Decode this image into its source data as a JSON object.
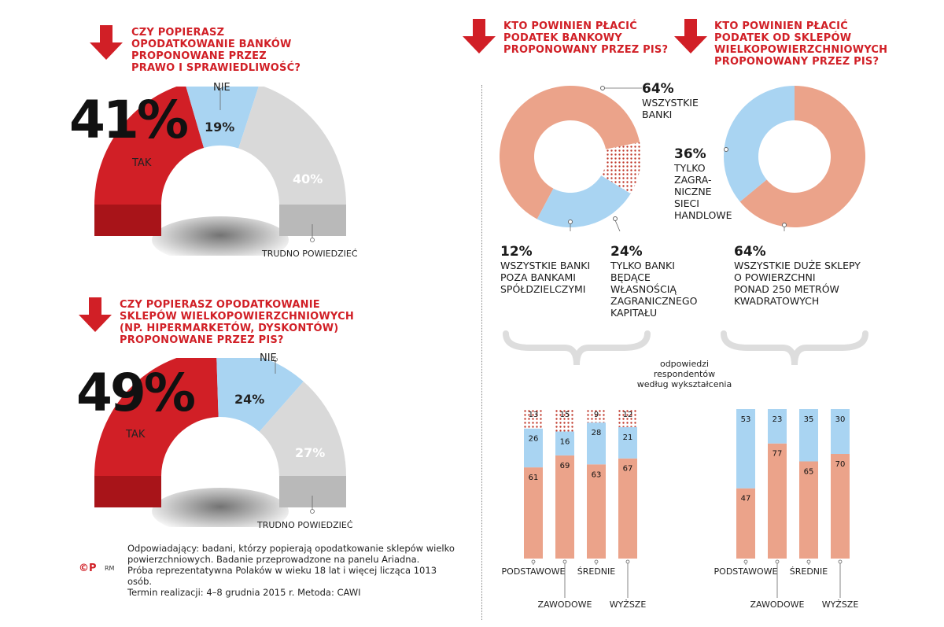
{
  "q1": {
    "title": [
      "CZY POPIERASZ",
      "OPODATKOWANIE BANKÓW",
      "PROPONOWANE PRZEZ",
      "PRAWO I SPRAWIEDLIWOŚĆ?"
    ],
    "big": "41%",
    "tak": "TAK",
    "nie": "NIE",
    "nie_pct": "19%",
    "trudno_pct": "40%",
    "trudno": "TRUDNO POWIEDZIEĆ"
  },
  "q2": {
    "title": [
      "CZY POPIERASZ OPODATKOWANIE",
      "SKLEPÓW WIELKOPOWIERZCHNIOWYCH",
      "(NP. HIPERMARKETÓW, DYSKONTÓW)",
      "PROPONOWANE PRZEZ PIS?"
    ],
    "big": "49%",
    "tak": "TAK",
    "nie": "NIE",
    "nie_pct": "24%",
    "trudno_pct": "27%",
    "trudno": "TRUDNO POWIEDZIEĆ"
  },
  "q3": {
    "title": [
      "KTO POWINIEN PŁACIĆ",
      "PODATEK BANKOWY",
      "PROPONOWANY PRZEZ PIS?"
    ],
    "a1": {
      "pct": "64%",
      "lines": [
        "WSZYSTKIE",
        "BANKI"
      ]
    },
    "a2": {
      "pct": "12%",
      "lines": [
        "WSZYSTKIE BANKI",
        "POZA BANKAMI",
        "SPÓŁDZIELCZYMI"
      ]
    },
    "a3": {
      "pct": "24%",
      "lines": [
        "TYLKO BANKI",
        "BĘDĄCE",
        "WŁASNOŚCIĄ",
        "ZAGRANICZNEGO",
        "KAPITAŁU"
      ]
    }
  },
  "q4": {
    "title": [
      "KTO POWINIEN PŁACIĆ",
      "PODATEK OD SKLEPÓW",
      "WIELKOPOWIERZCHNIOWYCH",
      "PROPONOWANY PRZEZ PIS?"
    ],
    "a1": {
      "pct": "36%",
      "lines": [
        "TYLKO",
        "ZAGRA-",
        "NICZNE",
        "SIECI",
        "HANDLOWE"
      ]
    },
    "a2": {
      "pct": "64%",
      "lines": [
        "WSZYSTKIE DUŻE SKLEPY",
        "O POWIERZCHNI",
        "PONAD 250 METRÓW",
        "KWADRATOWYCH"
      ]
    }
  },
  "edu_caption": [
    "odpowiedzi",
    "respondentów",
    "według wykształcenia"
  ],
  "note": [
    "Odpowiadający: badani, którzy popierają opodatkowanie sklepów wielko",
    "powierzchniowych. Badanie przeprowadzone na panelu Ariadna.",
    "Próba reprezentatywna Polaków w wieku 18 lat i więcej licząca 1013 osób.",
    "Termin realizacji: 4–8 grudnia 2015 r. Metoda: CAWI"
  ],
  "logo": "©P",
  "author": "RM",
  "colors": {
    "red": "#d11f26",
    "blue": "#a9d4f2",
    "salmon": "#eba38a",
    "grey": "#d9d9d9",
    "dot": "#c0392b"
  },
  "chart_data": [
    {
      "type": "pie",
      "title": "CZY POPIERASZ OPODATKOWANIE BANKÓW PROPONOWANE PRZEZ PRAWO I SPRAWIEDLIWOŚĆ?",
      "categories": [
        "TAK",
        "NIE",
        "TRUDNO POWIEDZIEĆ"
      ],
      "values": [
        41,
        19,
        40
      ]
    },
    {
      "type": "pie",
      "title": "CZY POPIERASZ OPODATKOWANIE SKLEPÓW WIELKOPOWIERZCHNIOWYCH (NP. HIPERMARKETÓW, DYSKONTÓW) PROPONOWANE PRZEZ PIS?",
      "categories": [
        "TAK",
        "NIE",
        "TRUDNO POWIEDZIEĆ"
      ],
      "values": [
        49,
        24,
        27
      ]
    },
    {
      "type": "pie",
      "title": "KTO POWINIEN PŁACIĆ PODATEK BANKOWY PROPONOWANY PRZEZ PIS?",
      "categories": [
        "WSZYSTKIE BANKI",
        "WSZYSTKIE BANKI POZA BANKAMI SPÓŁDZIELCZYMI",
        "TYLKO BANKI BĘDĄCE WŁASNOŚCIĄ ZAGRANICZNEGO KAPITAŁU"
      ],
      "values": [
        64,
        12,
        24
      ]
    },
    {
      "type": "pie",
      "title": "KTO POWINIEN PŁACIĆ PODATEK OD SKLEPÓW WIELKOPOWIERZCHNIOWYCH PROPONOWANY PRZEZ PIS?",
      "categories": [
        "WSZYSTKIE DUŻE SKLEPY O POWIERZCHNI PONAD 250 METRÓW KWADRATOWYCH",
        "TYLKO ZAGRANICZNE SIECI HANDLOWE"
      ],
      "values": [
        64,
        36
      ]
    },
    {
      "type": "bar",
      "stacked": true,
      "categories": [
        "PODSTAWOWE",
        "ZAWODOWE",
        "ŚREDNIE",
        "WYŻSZE"
      ],
      "series": [
        {
          "name": "WSZYSTKIE BANKI",
          "values": [
            61,
            69,
            63,
            67
          ]
        },
        {
          "name": "TYLKO BANKI BĘDĄCE WŁASNOŚCIĄ ZAGRANICZNEGO KAPITAŁU",
          "values": [
            26,
            16,
            28,
            21
          ]
        },
        {
          "name": "WSZYSTKIE BANKI POZA BANKAMI SPÓŁDZIELCZYMI",
          "values": [
            13,
            15,
            9,
            12
          ]
        }
      ]
    },
    {
      "type": "bar",
      "stacked": true,
      "categories": [
        "PODSTAWOWE",
        "ZAWODOWE",
        "ŚREDNIE",
        "WYŻSZE"
      ],
      "series": [
        {
          "name": "WSZYSTKIE DUŻE SKLEPY O POWIERZCHNI PONAD 250 METRÓW KWADRATOWYCH",
          "values": [
            47,
            77,
            65,
            70
          ]
        },
        {
          "name": "TYLKO ZAGRANICZNE SIECI HANDLOWE",
          "values": [
            53,
            23,
            35,
            30
          ]
        }
      ]
    }
  ]
}
